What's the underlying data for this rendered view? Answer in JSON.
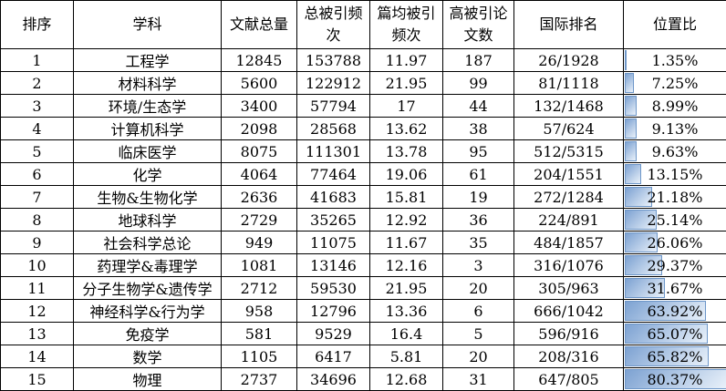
{
  "chart_data": {
    "type": "table",
    "columns": [
      {
        "key": "rank",
        "label": "排序"
      },
      {
        "key": "subject",
        "label": "学科"
      },
      {
        "key": "docs",
        "label": "文献总量"
      },
      {
        "key": "cites",
        "label": "总被引频次"
      },
      {
        "key": "avg_cites",
        "label": "篇均被引频次"
      },
      {
        "key": "top_papers",
        "label": "高被引论文数"
      },
      {
        "key": "world_rank",
        "label": "国际排名"
      },
      {
        "key": "position_ratio",
        "label": "位置比"
      }
    ],
    "rows": [
      {
        "rank": "1",
        "subject": "工程学",
        "docs": "12845",
        "cites": "153788",
        "avg_cites": "11.97",
        "top_papers": "187",
        "world_rank": "26/1928",
        "position_ratio": "1.35%",
        "position_value": 1.35
      },
      {
        "rank": "2",
        "subject": "材料科学",
        "docs": "5600",
        "cites": "122912",
        "avg_cites": "21.95",
        "top_papers": "99",
        "world_rank": "81/1118",
        "position_ratio": "7.25%",
        "position_value": 7.25
      },
      {
        "rank": "3",
        "subject": "环境/生态学",
        "docs": "3400",
        "cites": "57794",
        "avg_cites": "17",
        "top_papers": "44",
        "world_rank": "132/1468",
        "position_ratio": "8.99%",
        "position_value": 8.99
      },
      {
        "rank": "4",
        "subject": "计算机科学",
        "docs": "2098",
        "cites": "28568",
        "avg_cites": "13.62",
        "top_papers": "38",
        "world_rank": "57/624",
        "position_ratio": "9.13%",
        "position_value": 9.13
      },
      {
        "rank": "5",
        "subject": "临床医学",
        "docs": "8075",
        "cites": "111301",
        "avg_cites": "13.78",
        "top_papers": "95",
        "world_rank": "512/5315",
        "position_ratio": "9.63%",
        "position_value": 9.63
      },
      {
        "rank": "6",
        "subject": "化学",
        "docs": "4064",
        "cites": "77464",
        "avg_cites": "19.06",
        "top_papers": "61",
        "world_rank": "204/1551",
        "position_ratio": "13.15%",
        "position_value": 13.15
      },
      {
        "rank": "7",
        "subject": "生物&生物化学",
        "docs": "2636",
        "cites": "41683",
        "avg_cites": "15.81",
        "top_papers": "19",
        "world_rank": "272/1284",
        "position_ratio": "21.18%",
        "position_value": 21.18
      },
      {
        "rank": "8",
        "subject": "地球科学",
        "docs": "2729",
        "cites": "35265",
        "avg_cites": "12.92",
        "top_papers": "36",
        "world_rank": "224/891",
        "position_ratio": "25.14%",
        "position_value": 25.14
      },
      {
        "rank": "9",
        "subject": "社会科学总论",
        "docs": "949",
        "cites": "11075",
        "avg_cites": "11.67",
        "top_papers": "35",
        "world_rank": "484/1857",
        "position_ratio": "26.06%",
        "position_value": 26.06
      },
      {
        "rank": "10",
        "subject": "药理学&毒理学",
        "docs": "1081",
        "cites": "13146",
        "avg_cites": "12.16",
        "top_papers": "3",
        "world_rank": "316/1076",
        "position_ratio": "29.37%",
        "position_value": 29.37
      },
      {
        "rank": "11",
        "subject": "分子生物学&遗传学",
        "docs": "2712",
        "cites": "59530",
        "avg_cites": "21.95",
        "top_papers": "20",
        "world_rank": "305/963",
        "position_ratio": "31.67%",
        "position_value": 31.67
      },
      {
        "rank": "12",
        "subject": "神经科学&行为学",
        "docs": "958",
        "cites": "12796",
        "avg_cites": "13.36",
        "top_papers": "6",
        "world_rank": "666/1042",
        "position_ratio": "63.92%",
        "position_value": 63.92
      },
      {
        "rank": "13",
        "subject": "免疫学",
        "docs": "581",
        "cites": "9529",
        "avg_cites": "16.4",
        "top_papers": "5",
        "world_rank": "596/916",
        "position_ratio": "65.07%",
        "position_value": 65.07
      },
      {
        "rank": "14",
        "subject": "数学",
        "docs": "1105",
        "cites": "6417",
        "avg_cites": "5.81",
        "top_papers": "20",
        "world_rank": "208/316",
        "position_ratio": "65.82%",
        "position_value": 65.82
      },
      {
        "rank": "15",
        "subject": "物理",
        "docs": "2737",
        "cites": "34696",
        "avg_cites": "12.68",
        "top_papers": "31",
        "world_rank": "647/805",
        "position_ratio": "80.37%",
        "position_value": 80.37
      }
    ],
    "data_bars": {
      "column": "position_ratio",
      "scale_max_percent": 80.37,
      "fill_start_color": "#7da2d2",
      "fill_end_color": "#e9f1fa",
      "border_color": "#6d96c8"
    },
    "layout_hints": {
      "grid": "on",
      "header_rows": 1
    }
  }
}
